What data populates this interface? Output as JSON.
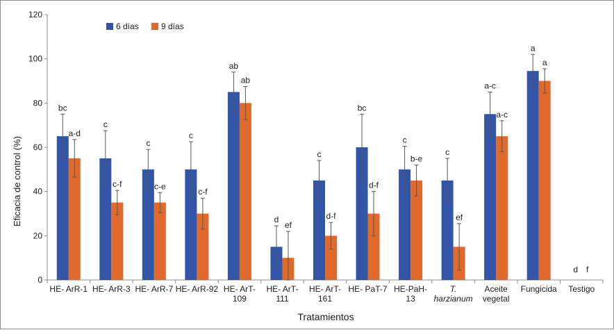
{
  "chart_data": {
    "type": "bar",
    "xlabel": "Tratamientos",
    "ylabel": "Eficacia de control (%)",
    "ylim": [
      0,
      120
    ],
    "yticks": [
      0,
      20,
      40,
      60,
      80,
      100,
      120
    ],
    "grid": false,
    "legend_position": "top-left",
    "categories": [
      [
        "HE- ArR-1"
      ],
      [
        "HE- ArR-3"
      ],
      [
        "HE- ArR-7"
      ],
      [
        "HE- ArR-92"
      ],
      [
        "HE- ArT-",
        "109"
      ],
      [
        "HE- ArT-",
        "111"
      ],
      [
        "HE- ArT-",
        "161"
      ],
      [
        "HE- PaT-7"
      ],
      [
        "HE-PaH-",
        "13"
      ],
      [
        "T.",
        "harzianum"
      ],
      [
        "Aceite",
        "vegetal"
      ],
      [
        "Fungicida"
      ],
      [
        "Testigo"
      ]
    ],
    "italic_categories": [
      9
    ],
    "series": [
      {
        "name": "6 días",
        "color": "#3355a8",
        "values": [
          65,
          55,
          50,
          50,
          85,
          15,
          45,
          60,
          50,
          45,
          75,
          94.5,
          0
        ],
        "errors": [
          10,
          12.5,
          9,
          12.5,
          9,
          9.5,
          9,
          15,
          10.5,
          10,
          10,
          7.5,
          0
        ],
        "letters": [
          "bc",
          "c",
          "c",
          "c",
          "ab",
          "d",
          "c",
          "bc",
          "c",
          "c",
          "a-c",
          "a",
          "d"
        ]
      },
      {
        "name": "9 días",
        "color": "#e06a2c",
        "values": [
          55,
          35,
          35,
          30,
          80,
          10,
          20,
          30,
          45,
          15,
          65,
          90,
          0
        ],
        "errors": [
          8.5,
          5.5,
          4.5,
          7,
          7.5,
          12,
          6,
          10,
          7,
          10.5,
          7,
          5.5,
          0
        ],
        "letters": [
          "a-d",
          "c-f",
          "c-e",
          "c-f",
          "ab",
          "ef",
          "d-f",
          "d-f",
          "b-e",
          "ef",
          "a-c",
          "a",
          "f"
        ]
      }
    ]
  }
}
